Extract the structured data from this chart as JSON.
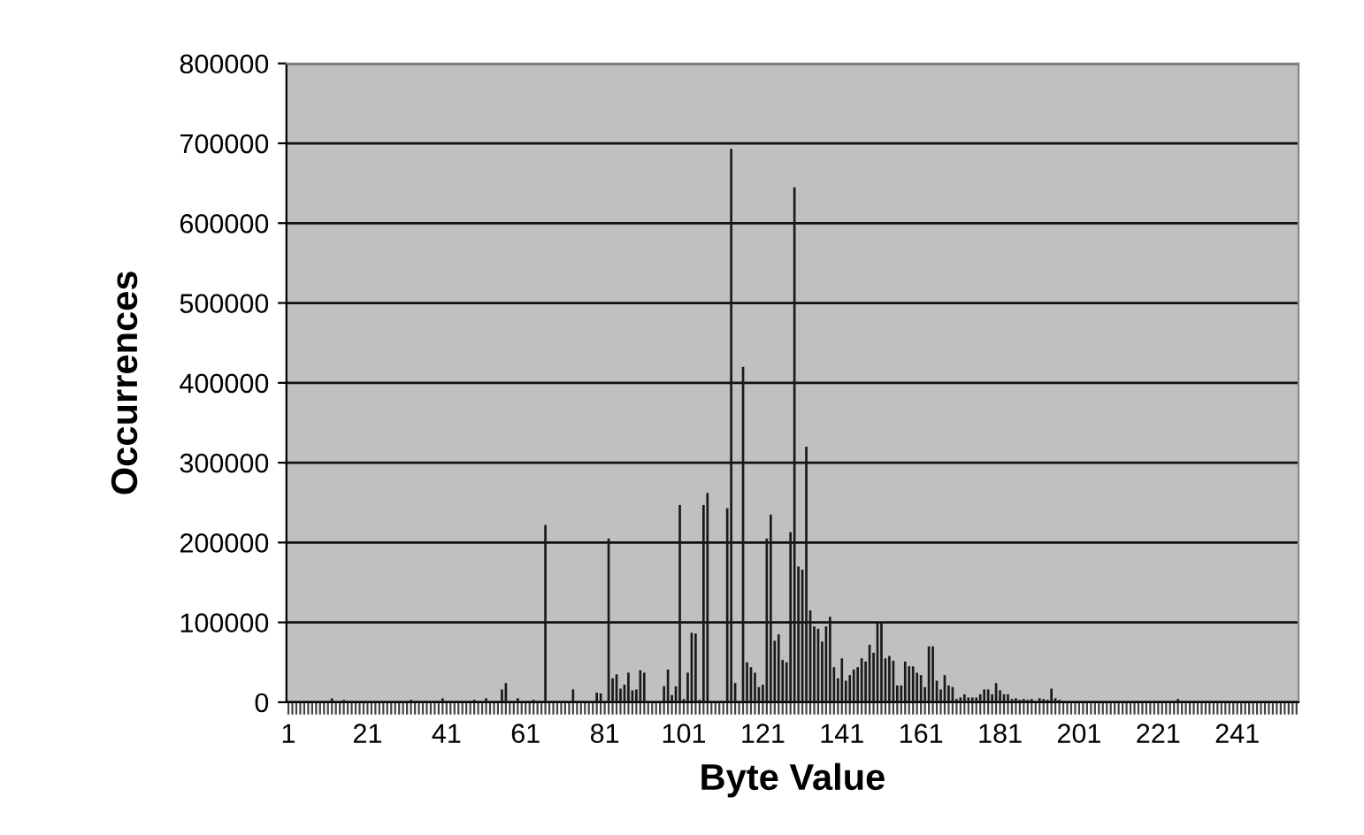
{
  "chart_data": {
    "type": "bar",
    "xlabel": "Byte Value",
    "ylabel": "Occurrences",
    "categories": [
      "1",
      null,
      null,
      null,
      null,
      null,
      null,
      null,
      null,
      null,
      null,
      null,
      null,
      null,
      null,
      null,
      null,
      null,
      null,
      null,
      "21",
      null,
      null,
      null,
      null,
      null,
      null,
      null,
      null,
      null,
      null,
      null,
      null,
      null,
      null,
      null,
      null,
      null,
      null,
      null,
      "41",
      null,
      null,
      null,
      null,
      null,
      null,
      null,
      null,
      null,
      null,
      null,
      null,
      null,
      null,
      null,
      null,
      null,
      null,
      null,
      "61",
      null,
      null,
      null,
      null,
      null,
      null,
      null,
      null,
      null,
      null,
      null,
      null,
      null,
      null,
      null,
      null,
      null,
      null,
      null,
      "81",
      null,
      null,
      null,
      null,
      null,
      null,
      null,
      null,
      null,
      null,
      null,
      null,
      null,
      null,
      null,
      null,
      null,
      null,
      null,
      "101",
      null,
      null,
      null,
      null,
      null,
      null,
      null,
      null,
      null,
      null,
      null,
      null,
      null,
      null,
      null,
      null,
      null,
      null,
      null,
      "121",
      null,
      null,
      null,
      null,
      null,
      null,
      null,
      null,
      null,
      null,
      null,
      null,
      null,
      null,
      null,
      null,
      null,
      null,
      null,
      "141",
      null,
      null,
      null,
      null,
      null,
      null,
      null,
      null,
      null,
      null,
      null,
      null,
      null,
      null,
      null,
      null,
      null,
      null,
      null,
      "161",
      null,
      null,
      null,
      null,
      null,
      null,
      null,
      null,
      null,
      null,
      null,
      null,
      null,
      null,
      null,
      null,
      null,
      null,
      null,
      "181",
      null,
      null,
      null,
      null,
      null,
      null,
      null,
      null,
      null,
      null,
      null,
      null,
      null,
      null,
      null,
      null,
      null,
      null,
      null,
      "201",
      null,
      null,
      null,
      null,
      null,
      null,
      null,
      null,
      null,
      null,
      null,
      null,
      null,
      null,
      null,
      null,
      null,
      null,
      null,
      "221",
      null,
      null,
      null,
      null,
      null,
      null,
      null,
      null,
      null,
      null,
      null,
      null,
      null,
      null,
      null,
      null,
      null,
      null,
      null,
      "241",
      null,
      null,
      null,
      null,
      null,
      null,
      null,
      null,
      null,
      null,
      null,
      null,
      null,
      null,
      null
    ],
    "values": [
      0,
      0,
      0,
      0,
      0,
      0,
      0,
      0,
      0,
      0,
      0,
      5000,
      0,
      0,
      3000,
      0,
      0,
      0,
      0,
      0,
      0,
      0,
      0,
      0,
      0,
      0,
      0,
      0,
      0,
      0,
      0,
      3000,
      0,
      0,
      0,
      0,
      0,
      0,
      0,
      5000,
      0,
      0,
      0,
      0,
      0,
      0,
      0,
      3000,
      0,
      0,
      5000,
      0,
      0,
      0,
      16000,
      24000,
      0,
      0,
      5000,
      0,
      0,
      0,
      3000,
      0,
      0,
      222000,
      0,
      0,
      0,
      0,
      0,
      0,
      16000,
      0,
      0,
      0,
      0,
      0,
      12000,
      11000,
      0,
      205000,
      30000,
      35000,
      17000,
      22000,
      37000,
      15000,
      16000,
      40000,
      37000,
      0,
      0,
      0,
      0,
      20000,
      41000,
      9000,
      20000,
      247000,
      4000,
      37000,
      87000,
      86000,
      3000,
      247000,
      262000,
      0,
      0,
      null,
      0,
      243000,
      693000,
      24000,
      0,
      420000,
      50000,
      44000,
      37000,
      19000,
      22000,
      205000,
      235000,
      77000,
      85000,
      53000,
      50000,
      213000,
      645000,
      170000,
      166000,
      320000,
      115000,
      95000,
      92000,
      76000,
      95000,
      107000,
      44000,
      30000,
      55000,
      27000,
      34000,
      41000,
      44000,
      55000,
      51000,
      72000,
      62000,
      100000,
      100000,
      55000,
      58000,
      52000,
      21000,
      21000,
      51000,
      45000,
      45000,
      37000,
      34000,
      19000,
      70000,
      70000,
      27000,
      16000,
      34000,
      21000,
      19000,
      4000,
      6000,
      10000,
      6000,
      6000,
      6000,
      10000,
      16000,
      16000,
      10000,
      24000,
      15000,
      10000,
      10000,
      4000,
      5000,
      3000,
      4000,
      3000,
      4000,
      null,
      5000,
      4000,
      3000,
      17000,
      5000,
      3000,
      0,
      0,
      0,
      0,
      0,
      0,
      0,
      0,
      0,
      0,
      0,
      0,
      0,
      0,
      0,
      0,
      0,
      0,
      0,
      0,
      0,
      0,
      0,
      0,
      0,
      0,
      0,
      0,
      0,
      4000,
      0,
      0,
      0,
      0,
      0,
      0,
      0,
      0,
      0,
      0,
      0,
      0,
      0,
      0,
      0,
      0,
      0,
      0,
      0,
      0,
      0,
      null,
      0,
      0,
      0,
      0,
      0,
      0,
      0,
      0
    ],
    "color": "#1a1a1a",
    "ylim": [
      0,
      800000
    ],
    "yticks": [
      0,
      100000,
      200000,
      300000,
      400000,
      500000,
      600000,
      700000,
      800000
    ],
    "grid": "y",
    "legend": false
  }
}
